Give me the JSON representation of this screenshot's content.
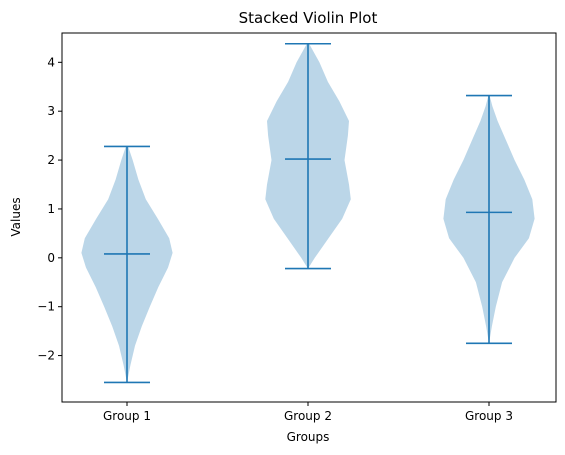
{
  "chart_data": {
    "type": "violin",
    "title": "Stacked Violin Plot",
    "xlabel": "Groups",
    "ylabel": "Values",
    "categories": [
      "Group 1",
      "Group 2",
      "Group 3"
    ],
    "ylim": [
      -2.95,
      4.6
    ],
    "yticks": [
      -2,
      -1,
      0,
      1,
      2,
      3,
      4
    ],
    "ytick_labels": [
      "−2",
      "−1",
      "0",
      "1",
      "2",
      "3",
      "4"
    ],
    "grid": false,
    "colors": {
      "body": "#1f77b4",
      "body_alpha": 0.3,
      "lines": "#1f77b4"
    },
    "violins": [
      {
        "category": "Group 1",
        "min": -2.55,
        "max": 2.28,
        "median": 0.08,
        "profile": [
          [
            -2.55,
            0.0
          ],
          [
            -2.2,
            0.06
          ],
          [
            -1.8,
            0.14
          ],
          [
            -1.4,
            0.26
          ],
          [
            -1.0,
            0.4
          ],
          [
            -0.6,
            0.55
          ],
          [
            -0.2,
            0.72
          ],
          [
            0.1,
            0.8
          ],
          [
            0.4,
            0.74
          ],
          [
            0.8,
            0.54
          ],
          [
            1.2,
            0.33
          ],
          [
            1.6,
            0.2
          ],
          [
            2.0,
            0.1
          ],
          [
            2.28,
            0.02
          ]
        ]
      },
      {
        "category": "Group 2",
        "min": -0.22,
        "max": 4.38,
        "median": 2.02,
        "profile": [
          [
            -0.22,
            0.0
          ],
          [
            0.0,
            0.12
          ],
          [
            0.4,
            0.36
          ],
          [
            0.8,
            0.6
          ],
          [
            1.2,
            0.75
          ],
          [
            1.5,
            0.72
          ],
          [
            2.0,
            0.64
          ],
          [
            2.5,
            0.7
          ],
          [
            2.8,
            0.72
          ],
          [
            3.2,
            0.55
          ],
          [
            3.6,
            0.35
          ],
          [
            4.0,
            0.2
          ],
          [
            4.38,
            0.02
          ]
        ]
      },
      {
        "category": "Group 3",
        "min": -1.75,
        "max": 3.32,
        "median": 0.93,
        "profile": [
          [
            -1.75,
            0.0
          ],
          [
            -1.4,
            0.05
          ],
          [
            -1.0,
            0.12
          ],
          [
            -0.5,
            0.23
          ],
          [
            0.0,
            0.45
          ],
          [
            0.4,
            0.7
          ],
          [
            0.8,
            0.8
          ],
          [
            1.2,
            0.76
          ],
          [
            1.6,
            0.62
          ],
          [
            2.0,
            0.45
          ],
          [
            2.4,
            0.3
          ],
          [
            2.8,
            0.15
          ],
          [
            3.1,
            0.06
          ],
          [
            3.32,
            0.01
          ]
        ]
      }
    ]
  }
}
